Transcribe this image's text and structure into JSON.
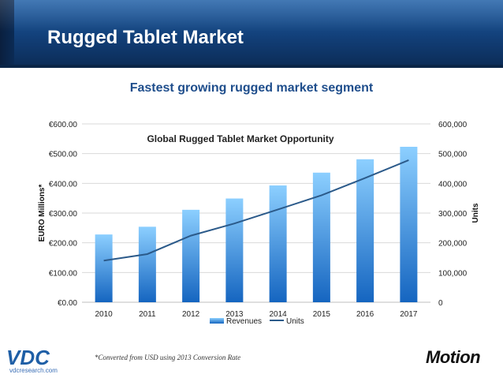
{
  "slide": {
    "title": "Rugged Tablet Market",
    "subtitle": "Fastest growing rugged market segment",
    "footnote": "*Converted from USD using 2013 Conversion Rate",
    "vdc_logo_text": "VDC",
    "vdc_url": "vdcresearch.com",
    "motion_logo_text": "Motion"
  },
  "colors": {
    "banner": "#123f78",
    "subtitle": "#1f4e8c",
    "bar_top": "#8ccfff",
    "bar_bottom": "#1565c0",
    "line": "#2b5a8a"
  },
  "chart_data": {
    "type": "bar",
    "title": "Global Rugged Tablet Market Opportunity",
    "categories": [
      "2010",
      "2011",
      "2012",
      "2013",
      "2014",
      "2015",
      "2016",
      "2017"
    ],
    "series": [
      {
        "name": "Revenues",
        "type": "bar",
        "axis": "left",
        "values": [
          228,
          254,
          311,
          349,
          393,
          436,
          481,
          523
        ]
      },
      {
        "name": "Units",
        "type": "line",
        "axis": "right",
        "values": [
          140000,
          162000,
          224000,
          265000,
          312000,
          360000,
          418000,
          478000
        ]
      }
    ],
    "ylabel": "EURO Millions*",
    "y2label": "Units",
    "ylim": [
      0,
      600
    ],
    "y2lim": [
      0,
      600000
    ],
    "yticks": [
      "€0.00",
      "€100.00",
      "€200.00",
      "€300.00",
      "€400.00",
      "€500.00",
      "€600.00"
    ],
    "y2ticks": [
      "0",
      "100,000",
      "200,000",
      "300,000",
      "400,000",
      "500,000",
      "600,000"
    ],
    "grid": true,
    "legend": "bottom-center"
  }
}
